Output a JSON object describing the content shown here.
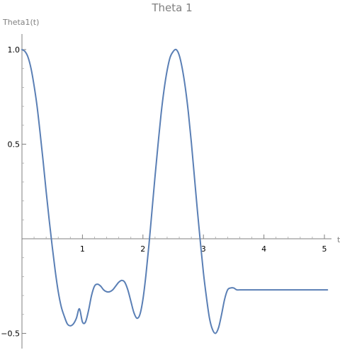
{
  "chart_data": {
    "type": "line",
    "title": "Theta 1",
    "xlabel": "t",
    "ylabel": "Theta1(t)",
    "xlim": [
      0,
      5.1
    ],
    "ylim": [
      -0.58,
      1.05
    ],
    "xticks": [
      {
        "value": 1,
        "label": "1"
      },
      {
        "value": 2,
        "label": "2"
      },
      {
        "value": 3,
        "label": "3"
      },
      {
        "value": 4,
        "label": "4"
      },
      {
        "value": 5,
        "label": "5"
      }
    ],
    "yticks": [
      {
        "value": -0.5,
        "label": "−0.5"
      },
      {
        "value": 0.5,
        "label": "0.5"
      },
      {
        "value": 1.0,
        "label": "1.0"
      }
    ],
    "grid": false,
    "color": "#5a7fb5",
    "series": [
      {
        "x": [
          0,
          0.05,
          0.1,
          0.15,
          0.2,
          0.25,
          0.3,
          0.35,
          0.4,
          0.45,
          0.5,
          0.55,
          0.6,
          0.65,
          0.7,
          0.75,
          0.8,
          0.85,
          0.9,
          0.95,
          1.0,
          1.05,
          1.1,
          1.15,
          1.2,
          1.25,
          1.3,
          1.35,
          1.4,
          1.45,
          1.5,
          1.55,
          1.6,
          1.65,
          1.7,
          1.75,
          1.8,
          1.85,
          1.9,
          1.95,
          2.0,
          2.05,
          2.1,
          2.15,
          2.2,
          2.25,
          2.3,
          2.35,
          2.4,
          2.45,
          2.5,
          2.55,
          2.6,
          2.65,
          2.7,
          2.75,
          2.8,
          2.85,
          2.9,
          2.95,
          3.0,
          3.05,
          3.1,
          3.15,
          3.2,
          3.25,
          3.3,
          3.35,
          3.4,
          3.45,
          3.5,
          3.55,
          3.6,
          3.65,
          3.7,
          3.75,
          3.8,
          3.85,
          3.9,
          3.95,
          4.0,
          4.05,
          4.1,
          4.15,
          4.2,
          4.25,
          4.3,
          4.35,
          4.4,
          4.45,
          4.5,
          4.55,
          4.6,
          4.65,
          4.7,
          4.75,
          4.8,
          4.85,
          4.9,
          4.95,
          5.0,
          5.05
        ],
        "y": [
          1.0,
          0.99,
          0.96,
          0.9,
          0.81,
          0.7,
          0.56,
          0.41,
          0.25,
          0.1,
          -0.04,
          -0.17,
          -0.28,
          -0.36,
          -0.41,
          -0.45,
          -0.46,
          -0.45,
          -0.42,
          -0.37,
          -0.44,
          -0.44,
          -0.38,
          -0.3,
          -0.25,
          -0.24,
          -0.25,
          -0.27,
          -0.28,
          -0.28,
          -0.27,
          -0.25,
          -0.23,
          -0.22,
          -0.23,
          -0.27,
          -0.33,
          -0.39,
          -0.42,
          -0.4,
          -0.32,
          -0.19,
          -0.03,
          0.15,
          0.33,
          0.5,
          0.66,
          0.79,
          0.89,
          0.96,
          0.99,
          1.0,
          0.97,
          0.9,
          0.8,
          0.67,
          0.51,
          0.33,
          0.15,
          -0.02,
          -0.18,
          -0.31,
          -0.42,
          -0.48,
          -0.5,
          -0.47,
          -0.4,
          -0.32,
          -0.27,
          -0.26,
          -0.26,
          -0.27,
          -0.27,
          -0.27,
          -0.27,
          -0.27,
          -0.27,
          -0.27,
          -0.27,
          -0.27,
          -0.27,
          -0.27,
          -0.27,
          -0.27,
          -0.27,
          -0.27,
          -0.27,
          -0.27,
          -0.27,
          -0.27,
          -0.27,
          -0.27,
          -0.27,
          -0.27,
          -0.27,
          -0.27,
          -0.27,
          -0.27,
          -0.27,
          -0.27,
          -0.27,
          -0.27
        ]
      }
    ]
  }
}
